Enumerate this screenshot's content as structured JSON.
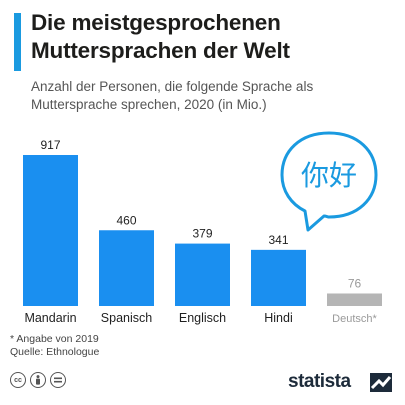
{
  "header": {
    "title": "Die meistgesprochenen Muttersprachen der Welt",
    "subtitle": "Anzahl der Personen, die folgende Sprache als Muttersprache sprechen, 2020 (in Mio.)"
  },
  "illustration": {
    "text": "你好",
    "icon": "speech-bubble-icon"
  },
  "footer": {
    "note": "* Angabe von 2019",
    "source": "Quelle: Ethnologue",
    "brand": "statista",
    "license_icons": [
      "cc-icon",
      "by-icon",
      "nd-icon"
    ]
  },
  "colors": {
    "accent": "#1a9ae0",
    "bar": "#1a8ff0",
    "bar_muted": "#b5b5b5",
    "label_muted": "#9a9a9a"
  },
  "chart_data": {
    "type": "bar",
    "categories": [
      "Mandarin",
      "Spanisch",
      "Englisch",
      "Hindi",
      "Deutsch*"
    ],
    "values": [
      917,
      460,
      379,
      341,
      76
    ],
    "highlight": [
      true,
      true,
      true,
      true,
      false
    ],
    "title": "Die meistgesprochenen Muttersprachen der Welt",
    "xlabel": "",
    "ylabel": "",
    "ylim": [
      0,
      917
    ],
    "grid": false,
    "legend": "none"
  }
}
